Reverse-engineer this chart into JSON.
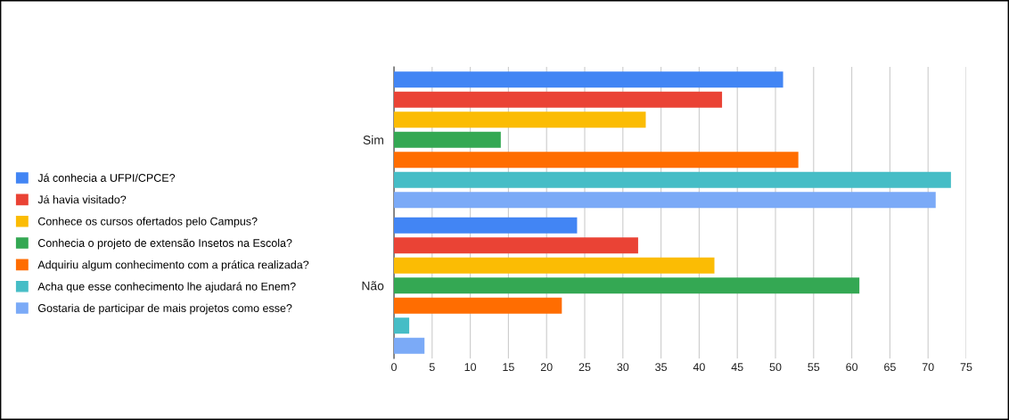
{
  "chart_data": {
    "type": "bar",
    "orientation": "horizontal",
    "categories": [
      "Sim",
      "Não"
    ],
    "series": [
      {
        "name": "Já conhecia a UFPI/CPCE?",
        "color": "#4285f4",
        "values": [
          51,
          24
        ]
      },
      {
        "name": "Já havia visitado?",
        "color": "#ea4335",
        "values": [
          43,
          32
        ]
      },
      {
        "name": "Conhece os cursos ofertados pelo Campus?",
        "color": "#fbbc04",
        "values": [
          33,
          42
        ]
      },
      {
        "name": "Conhecia o projeto de extensão Insetos na Escola?",
        "color": "#34a853",
        "values": [
          14,
          61
        ]
      },
      {
        "name": "Adquiriu algum conhecimento com a prática realizada?",
        "color": "#ff6d01",
        "values": [
          53,
          22
        ]
      },
      {
        "name": "Acha que esse conhecimento lhe ajudará no Enem?",
        "color": "#46bdc6",
        "values": [
          73,
          2
        ]
      },
      {
        "name": "Gostaria de participar de mais projetos como esse?",
        "color": "#7baaf7",
        "values": [
          71,
          4
        ]
      }
    ],
    "xlim": [
      0,
      75
    ],
    "xticks": [
      0,
      5,
      10,
      15,
      20,
      25,
      30,
      35,
      40,
      45,
      50,
      55,
      60,
      65,
      70,
      75
    ],
    "grid": "x",
    "legend": "left"
  }
}
